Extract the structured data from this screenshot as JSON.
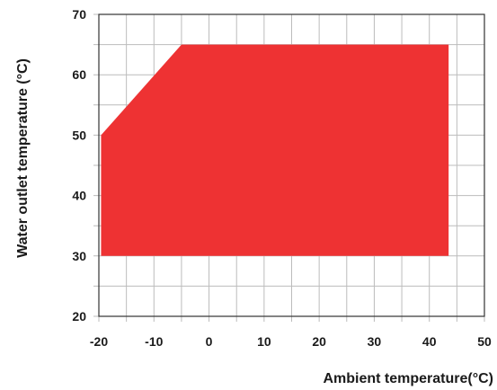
{
  "chart_data": {
    "type": "area",
    "xlabel": "Ambient temperature(°C)",
    "ylabel": "Water outlet temperature (°C)",
    "xlim": [
      -20,
      50
    ],
    "ylim": [
      20,
      70
    ],
    "x_ticks": [
      -20,
      -10,
      0,
      10,
      20,
      30,
      40,
      50
    ],
    "x_tick_labels": [
      "-20",
      "-10",
      "0",
      "10",
      "20",
      "30",
      "40",
      "50"
    ],
    "y_ticks": [
      20,
      30,
      40,
      50,
      60,
      70
    ],
    "y_tick_labels": [
      "20",
      "30",
      "40",
      "50",
      "60",
      "70"
    ],
    "x_minor_step": 5,
    "y_minor_step": 5,
    "grid": true,
    "region": {
      "fill_color": "#ee3233",
      "points": [
        {
          "x": -19.6,
          "y": 30
        },
        {
          "x": -19.6,
          "y": 50
        },
        {
          "x": -5,
          "y": 65
        },
        {
          "x": 43.5,
          "y": 65
        },
        {
          "x": 43.5,
          "y": 30
        }
      ]
    }
  }
}
